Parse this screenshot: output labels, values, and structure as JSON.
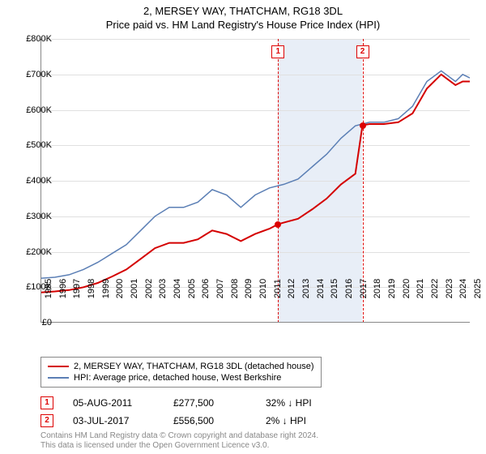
{
  "title": "2, MERSEY WAY, THATCHAM, RG18 3DL",
  "subtitle": "Price paid vs. HM Land Registry's House Price Index (HPI)",
  "chart": {
    "type": "line",
    "x_start": 1995,
    "x_end": 2025,
    "y_min": 0,
    "y_max": 800000,
    "y_step": 100000,
    "y_labels": [
      "£0",
      "£100K",
      "£200K",
      "£300K",
      "£400K",
      "£500K",
      "£600K",
      "£700K",
      "£800K"
    ],
    "x_labels": [
      "1995",
      "1996",
      "1997",
      "1998",
      "1999",
      "2000",
      "2001",
      "2002",
      "2003",
      "2004",
      "2005",
      "2006",
      "2007",
      "2008",
      "2009",
      "2010",
      "2011",
      "2012",
      "2013",
      "2014",
      "2015",
      "2016",
      "2017",
      "2018",
      "2019",
      "2020",
      "2021",
      "2022",
      "2023",
      "2024",
      "2025"
    ],
    "background_color": "#ffffff",
    "grid_color": "#e0e0e0",
    "shaded_region": {
      "start_year": 2011.6,
      "end_year": 2017.5,
      "color": "#e8eef7"
    },
    "vlines": [
      {
        "year": 2011.6,
        "label": "1"
      },
      {
        "year": 2017.5,
        "label": "2"
      }
    ],
    "series": [
      {
        "name": "property",
        "color": "#d40000",
        "width": 2,
        "points": [
          [
            1995,
            85000
          ],
          [
            1996,
            88000
          ],
          [
            1997,
            92000
          ],
          [
            1998,
            100000
          ],
          [
            1999,
            112000
          ],
          [
            2000,
            130000
          ],
          [
            2001,
            150000
          ],
          [
            2002,
            180000
          ],
          [
            2003,
            210000
          ],
          [
            2004,
            225000
          ],
          [
            2005,
            225000
          ],
          [
            2006,
            235000
          ],
          [
            2007,
            260000
          ],
          [
            2008,
            250000
          ],
          [
            2009,
            230000
          ],
          [
            2010,
            250000
          ],
          [
            2011,
            265000
          ],
          [
            2011.6,
            277500
          ],
          [
            2012,
            282000
          ],
          [
            2013,
            293000
          ],
          [
            2014,
            320000
          ],
          [
            2015,
            350000
          ],
          [
            2016,
            390000
          ],
          [
            2017,
            420000
          ],
          [
            2017.5,
            556500
          ],
          [
            2018,
            560000
          ],
          [
            2019,
            560000
          ],
          [
            2020,
            565000
          ],
          [
            2021,
            590000
          ],
          [
            2022,
            660000
          ],
          [
            2023,
            700000
          ],
          [
            2024,
            670000
          ],
          [
            2024.5,
            680000
          ],
          [
            2025,
            680000
          ]
        ]
      },
      {
        "name": "hpi",
        "color": "#5b7fb5",
        "width": 1.5,
        "points": [
          [
            1995,
            125000
          ],
          [
            1996,
            128000
          ],
          [
            1997,
            135000
          ],
          [
            1998,
            150000
          ],
          [
            1999,
            170000
          ],
          [
            2000,
            195000
          ],
          [
            2001,
            220000
          ],
          [
            2002,
            260000
          ],
          [
            2003,
            300000
          ],
          [
            2004,
            325000
          ],
          [
            2005,
            325000
          ],
          [
            2006,
            340000
          ],
          [
            2007,
            375000
          ],
          [
            2008,
            360000
          ],
          [
            2009,
            325000
          ],
          [
            2010,
            360000
          ],
          [
            2011,
            380000
          ],
          [
            2012,
            390000
          ],
          [
            2013,
            405000
          ],
          [
            2014,
            440000
          ],
          [
            2015,
            475000
          ],
          [
            2016,
            520000
          ],
          [
            2017,
            555000
          ],
          [
            2018,
            565000
          ],
          [
            2019,
            565000
          ],
          [
            2020,
            575000
          ],
          [
            2021,
            610000
          ],
          [
            2022,
            680000
          ],
          [
            2023,
            710000
          ],
          [
            2024,
            680000
          ],
          [
            2024.5,
            700000
          ],
          [
            2025,
            690000
          ]
        ]
      }
    ],
    "dots": [
      {
        "year": 2011.6,
        "value": 277500
      },
      {
        "year": 2017.5,
        "value": 556500
      }
    ]
  },
  "legend": {
    "items": [
      {
        "color": "#d40000",
        "width": 2,
        "label": "2, MERSEY WAY, THATCHAM, RG18 3DL (detached house)"
      },
      {
        "color": "#5b7fb5",
        "width": 1.5,
        "label": "HPI: Average price, detached house, West Berkshire"
      }
    ]
  },
  "sales": [
    {
      "marker": "1",
      "date": "05-AUG-2011",
      "price": "£277,500",
      "diff": "32% ↓ HPI"
    },
    {
      "marker": "2",
      "date": "03-JUL-2017",
      "price": "£556,500",
      "diff": "2% ↓ HPI"
    }
  ],
  "footer": {
    "line1": "Contains HM Land Registry data © Crown copyright and database right 2024.",
    "line2": "This data is licensed under the Open Government Licence v3.0."
  }
}
